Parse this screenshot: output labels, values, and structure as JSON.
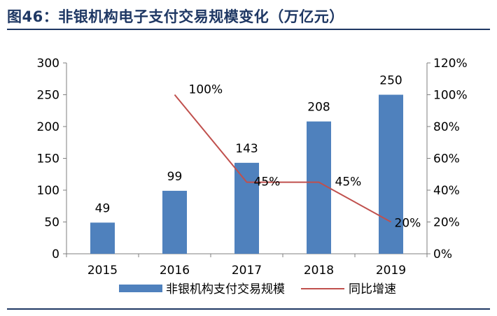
{
  "figure": {
    "title": "图46：非银机构电子支付交易规模变化（万亿元）"
  },
  "colors": {
    "title": "#1f3864",
    "bar": "#4f81bd",
    "line": "#c0504d",
    "axis": "#7f7f7f"
  },
  "chart_data": {
    "type": "bar",
    "categories": [
      "2015",
      "2016",
      "2017",
      "2018",
      "2019"
    ],
    "series": [
      {
        "name": "非银机构支付交易规模",
        "kind": "bar",
        "axis": "left",
        "values": [
          49,
          99,
          143,
          208,
          250
        ],
        "labels": [
          "49",
          "99",
          "143",
          "208",
          "250"
        ]
      },
      {
        "name": "同比增速",
        "kind": "line",
        "axis": "right",
        "x": [
          "2016",
          "2017",
          "2018",
          "2019"
        ],
        "values": [
          1.0,
          0.45,
          0.45,
          0.2
        ],
        "labels": [
          "100%",
          "45%",
          "45%",
          "20%"
        ]
      }
    ],
    "y_left": {
      "ylim": [
        0,
        300
      ],
      "ticks": [
        0,
        50,
        100,
        150,
        200,
        250,
        300
      ],
      "tick_labels": [
        "0",
        "50",
        "100",
        "150",
        "200",
        "250",
        "300"
      ]
    },
    "y_right": {
      "ylim": [
        0,
        1.2
      ],
      "ticks": [
        0,
        0.2,
        0.4,
        0.6,
        0.8,
        1.0,
        1.2
      ],
      "tick_labels": [
        "0%",
        "20%",
        "40%",
        "60%",
        "80%",
        "100%",
        "120%"
      ]
    },
    "grid": false,
    "legend": "bottom"
  }
}
